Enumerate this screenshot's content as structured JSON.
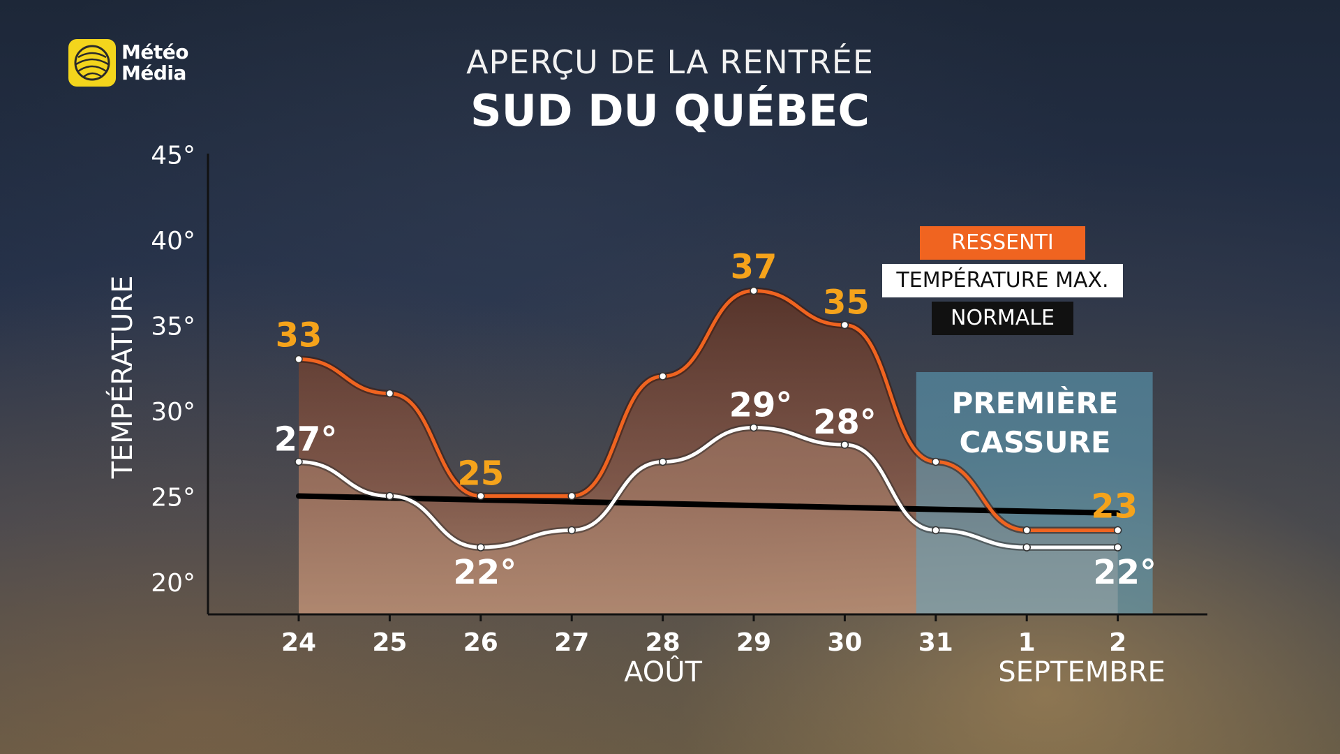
{
  "logo": {
    "line1": "Météo",
    "line2": "Média",
    "color": "#f3d51c"
  },
  "title": "APERÇU DE LA RENTRÉE",
  "subtitle": "SUD DU QUÉBEC",
  "legend": {
    "ressenti": "RESSENTI",
    "tmax": "TEMPÉRATURE MAX.",
    "normale": "NORMALE"
  },
  "annotation": {
    "line1": "PREMIÈRE",
    "line2": "CASSURE"
  },
  "months": {
    "aout": "AOÛT",
    "septembre": "SEPTEMBRE"
  },
  "chart_data": {
    "type": "line",
    "ylabel": "TEMPÉRATURE",
    "ylim": [
      18,
      45
    ],
    "y_ticks": [
      20,
      25,
      30,
      35,
      40,
      45
    ],
    "y_tick_labels": [
      "20°",
      "25°",
      "30°",
      "35°",
      "40°",
      "45°"
    ],
    "categories": [
      "24",
      "25",
      "26",
      "27",
      "28",
      "29",
      "30",
      "31",
      "1",
      "2"
    ],
    "series": [
      {
        "name": "RESSENTI",
        "color": "#f06420",
        "values": [
          33,
          31,
          25,
          25,
          32,
          37,
          35,
          27,
          23,
          23
        ],
        "labels": [
          "33",
          "",
          "25",
          "",
          "",
          "37",
          "35",
          "",
          "",
          "23"
        ]
      },
      {
        "name": "TEMPÉRATURE MAX.",
        "color": "#ffffff",
        "values": [
          27,
          25,
          22,
          23,
          27,
          29,
          28,
          23,
          22,
          22
        ],
        "labels": [
          "27°",
          "",
          "22°",
          "",
          "",
          "29°",
          "28°",
          "",
          "",
          "22°"
        ]
      },
      {
        "name": "NORMALE",
        "color": "#000000",
        "values": [
          25.0,
          24.9,
          24.8,
          24.7,
          24.6,
          24.5,
          24.4,
          24.3,
          24.1,
          24.0
        ]
      }
    ],
    "highlight_range": [
      "31",
      "2"
    ],
    "grid": false
  }
}
